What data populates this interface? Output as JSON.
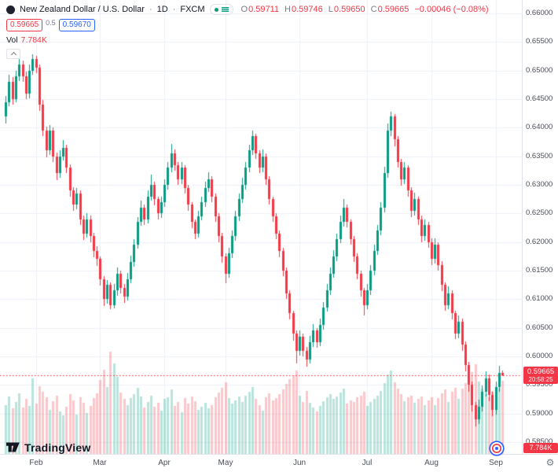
{
  "header": {
    "symbol_title": "New Zealand Dollar / U.S. Dollar",
    "separator": "·",
    "interval": "1D",
    "exchange": "FXCM",
    "ohlc": {
      "o_label": "O",
      "o": "0.59711",
      "h_label": "H",
      "h": "0.59746",
      "l_label": "L",
      "l": "0.59650",
      "c_label": "C",
      "c": "0.59665",
      "change": "−0.00046 (−0.08%)"
    },
    "bid": "0.59665",
    "spread": "0.5",
    "ask": "0.59670",
    "vol_label": "Vol",
    "vol_value": "7.784K"
  },
  "footer": {
    "brand": "TradingView"
  },
  "icons": {
    "gear": "⚙",
    "market_status": "green-dot"
  },
  "colors": {
    "up": "#089981",
    "down": "#f23645",
    "accent_blue": "#2962ff",
    "grid": "#eef0f6",
    "axis_text": "#4a4e59",
    "text_dark": "#131722",
    "text_muted": "#787b86"
  },
  "chart_data": {
    "type": "candlestick_with_volume",
    "title": "New Zealand Dollar / U.S. Dollar",
    "interval": "1D",
    "exchange": "FXCM",
    "legend_position": "top-left",
    "grid": true,
    "y_axis": {
      "min": 0.585,
      "max": 0.66,
      "tick_step": 0.005,
      "ticks": [
        "0.66000",
        "0.65500",
        "0.65000",
        "0.64500",
        "0.64000",
        "0.63500",
        "0.63000",
        "0.62500",
        "0.62000",
        "0.61500",
        "0.61000",
        "0.60500",
        "0.60000",
        "0.59500",
        "0.59000",
        "0.58500"
      ]
    },
    "x_axis": {
      "months": [
        {
          "label": "Feb",
          "i": 9
        },
        {
          "label": "Mar",
          "i": 28
        },
        {
          "label": "Apr",
          "i": 47
        },
        {
          "label": "May",
          "i": 65
        },
        {
          "label": "Jun",
          "i": 87
        },
        {
          "label": "Jul",
          "i": 107
        },
        {
          "label": "Aug",
          "i": 126
        },
        {
          "label": "Sep",
          "i": 145
        }
      ]
    },
    "price_line": {
      "price": 0.59665,
      "label": "0.59665",
      "countdown": "20:58:25"
    },
    "volume_label": "7.784K",
    "volume_unit": "K",
    "candle_fields": [
      "open",
      "high",
      "low",
      "close",
      "volumeK"
    ],
    "candles": [
      [
        0.642,
        0.6455,
        0.6408,
        0.6445,
        5.2
      ],
      [
        0.6445,
        0.6492,
        0.6438,
        0.648,
        6.1
      ],
      [
        0.648,
        0.6488,
        0.644,
        0.645,
        4.8
      ],
      [
        0.645,
        0.65,
        0.6444,
        0.649,
        5.5
      ],
      [
        0.649,
        0.6522,
        0.6482,
        0.651,
        6.4
      ],
      [
        0.651,
        0.6518,
        0.648,
        0.649,
        4.9
      ],
      [
        0.649,
        0.6498,
        0.645,
        0.646,
        5.8
      ],
      [
        0.646,
        0.651,
        0.6452,
        0.65,
        5.1
      ],
      [
        0.65,
        0.6528,
        0.6492,
        0.652,
        8.0
      ],
      [
        0.652,
        0.6526,
        0.6495,
        0.6505,
        5.3
      ],
      [
        0.6505,
        0.651,
        0.643,
        0.644,
        7.2
      ],
      [
        0.644,
        0.6448,
        0.6385,
        0.6395,
        6.6
      ],
      [
        0.6395,
        0.6402,
        0.6348,
        0.636,
        6.0
      ],
      [
        0.636,
        0.6405,
        0.6352,
        0.6395,
        4.7
      ],
      [
        0.6395,
        0.64,
        0.634,
        0.635,
        5.6
      ],
      [
        0.635,
        0.6356,
        0.6308,
        0.632,
        6.2
      ],
      [
        0.632,
        0.636,
        0.6312,
        0.635,
        4.5
      ],
      [
        0.635,
        0.6378,
        0.6342,
        0.6365,
        4.1
      ],
      [
        0.6365,
        0.637,
        0.632,
        0.633,
        5.0
      ],
      [
        0.633,
        0.6336,
        0.628,
        0.629,
        6.3
      ],
      [
        0.629,
        0.6296,
        0.6254,
        0.6265,
        5.7
      ],
      [
        0.6265,
        0.6295,
        0.6257,
        0.6285,
        4.2
      ],
      [
        0.6285,
        0.629,
        0.623,
        0.624,
        6.0
      ],
      [
        0.624,
        0.6246,
        0.6204,
        0.6215,
        5.4
      ],
      [
        0.6215,
        0.625,
        0.6208,
        0.624,
        4.3
      ],
      [
        0.624,
        0.6246,
        0.62,
        0.621,
        5.1
      ],
      [
        0.621,
        0.6216,
        0.6174,
        0.6185,
        5.9
      ],
      [
        0.6185,
        0.6192,
        0.6158,
        0.617,
        6.4
      ],
      [
        0.617,
        0.6175,
        0.6124,
        0.6135,
        7.8
      ],
      [
        0.6135,
        0.614,
        0.6088,
        0.61,
        8.9
      ],
      [
        0.61,
        0.6134,
        0.6092,
        0.6125,
        7.1
      ],
      [
        0.6125,
        0.613,
        0.6082,
        0.609,
        10.8
      ],
      [
        0.609,
        0.6126,
        0.6084,
        0.6115,
        9.6
      ],
      [
        0.6115,
        0.6155,
        0.6106,
        0.6145,
        8.2
      ],
      [
        0.6145,
        0.615,
        0.611,
        0.612,
        6.5
      ],
      [
        0.612,
        0.6126,
        0.6094,
        0.6105,
        5.8
      ],
      [
        0.6105,
        0.6146,
        0.6098,
        0.6135,
        5.2
      ],
      [
        0.6135,
        0.6176,
        0.6128,
        0.6165,
        5.9
      ],
      [
        0.6165,
        0.6205,
        0.6157,
        0.6195,
        6.3
      ],
      [
        0.6195,
        0.6244,
        0.6188,
        0.6235,
        7.0
      ],
      [
        0.6235,
        0.6272,
        0.6228,
        0.626,
        6.1
      ],
      [
        0.626,
        0.6266,
        0.623,
        0.624,
        4.9
      ],
      [
        0.624,
        0.629,
        0.6233,
        0.628,
        5.5
      ],
      [
        0.628,
        0.6318,
        0.6272,
        0.63,
        6.2
      ],
      [
        0.63,
        0.6306,
        0.6264,
        0.6275,
        5.0
      ],
      [
        0.6275,
        0.628,
        0.624,
        0.625,
        5.4
      ],
      [
        0.625,
        0.628,
        0.6242,
        0.627,
        4.6
      ],
      [
        0.627,
        0.631,
        0.6262,
        0.63,
        5.8
      ],
      [
        0.63,
        0.634,
        0.6292,
        0.633,
        6.0
      ],
      [
        0.633,
        0.6372,
        0.6322,
        0.6355,
        6.8
      ],
      [
        0.6355,
        0.6362,
        0.6325,
        0.6335,
        5.1
      ],
      [
        0.6335,
        0.634,
        0.63,
        0.631,
        5.5
      ],
      [
        0.631,
        0.634,
        0.6302,
        0.633,
        4.4
      ],
      [
        0.633,
        0.6335,
        0.6285,
        0.6295,
        5.9
      ],
      [
        0.6295,
        0.63,
        0.6255,
        0.6265,
        5.3
      ],
      [
        0.6265,
        0.627,
        0.6224,
        0.6235,
        6.1
      ],
      [
        0.6235,
        0.624,
        0.6205,
        0.6215,
        5.6
      ],
      [
        0.6215,
        0.6255,
        0.6208,
        0.6245,
        4.7
      ],
      [
        0.6245,
        0.628,
        0.6238,
        0.627,
        5.0
      ],
      [
        0.627,
        0.6306,
        0.6262,
        0.6295,
        5.4
      ],
      [
        0.6295,
        0.6322,
        0.6287,
        0.631,
        4.8
      ],
      [
        0.631,
        0.6315,
        0.627,
        0.628,
        5.2
      ],
      [
        0.628,
        0.6285,
        0.6235,
        0.6245,
        6.0
      ],
      [
        0.6245,
        0.625,
        0.62,
        0.621,
        6.5
      ],
      [
        0.621,
        0.6216,
        0.6164,
        0.6175,
        7.0
      ],
      [
        0.6175,
        0.618,
        0.6128,
        0.6145,
        7.6
      ],
      [
        0.6145,
        0.619,
        0.6138,
        0.618,
        5.9
      ],
      [
        0.618,
        0.622,
        0.6172,
        0.621,
        5.3
      ],
      [
        0.621,
        0.6254,
        0.6202,
        0.6245,
        5.7
      ],
      [
        0.6245,
        0.6285,
        0.6237,
        0.6275,
        6.1
      ],
      [
        0.6275,
        0.6312,
        0.6268,
        0.63,
        5.5
      ],
      [
        0.63,
        0.634,
        0.6292,
        0.633,
        6.2
      ],
      [
        0.633,
        0.637,
        0.6322,
        0.636,
        6.6
      ],
      [
        0.636,
        0.6395,
        0.6352,
        0.6385,
        7.1
      ],
      [
        0.6385,
        0.639,
        0.6345,
        0.6355,
        5.8
      ],
      [
        0.6355,
        0.636,
        0.632,
        0.633,
        5.2
      ],
      [
        0.633,
        0.6362,
        0.6322,
        0.635,
        4.6
      ],
      [
        0.635,
        0.6355,
        0.63,
        0.631,
        6.0
      ],
      [
        0.631,
        0.6315,
        0.6265,
        0.6275,
        6.4
      ],
      [
        0.6275,
        0.628,
        0.6235,
        0.6245,
        5.7
      ],
      [
        0.6245,
        0.625,
        0.6205,
        0.6215,
        5.9
      ],
      [
        0.6215,
        0.622,
        0.6174,
        0.6185,
        6.3
      ],
      [
        0.6185,
        0.619,
        0.614,
        0.615,
        6.8
      ],
      [
        0.615,
        0.6155,
        0.61,
        0.611,
        7.4
      ],
      [
        0.611,
        0.6116,
        0.6064,
        0.6075,
        7.9
      ],
      [
        0.6075,
        0.608,
        0.6028,
        0.604,
        8.3
      ],
      [
        0.604,
        0.6046,
        0.5988,
        0.601,
        8.8
      ],
      [
        0.601,
        0.6046,
        0.6002,
        0.6035,
        6.2
      ],
      [
        0.6035,
        0.604,
        0.6,
        0.601,
        5.5
      ],
      [
        0.601,
        0.6016,
        0.5982,
        0.5995,
        6.7
      ],
      [
        0.5995,
        0.6036,
        0.5988,
        0.6025,
        5.4
      ],
      [
        0.6025,
        0.6056,
        0.6017,
        0.6045,
        4.9
      ],
      [
        0.6045,
        0.605,
        0.6015,
        0.6025,
        4.5
      ],
      [
        0.6025,
        0.6066,
        0.6018,
        0.6055,
        5.1
      ],
      [
        0.6055,
        0.6095,
        0.6047,
        0.6085,
        5.6
      ],
      [
        0.6085,
        0.6126,
        0.6078,
        0.6115,
        6.0
      ],
      [
        0.6115,
        0.6155,
        0.6107,
        0.6145,
        6.3
      ],
      [
        0.6145,
        0.6186,
        0.6138,
        0.6175,
        5.8
      ],
      [
        0.6175,
        0.6215,
        0.6167,
        0.6205,
        6.1
      ],
      [
        0.6205,
        0.6246,
        0.6198,
        0.6235,
        6.5
      ],
      [
        0.6235,
        0.6275,
        0.6227,
        0.626,
        6.9
      ],
      [
        0.626,
        0.6265,
        0.6225,
        0.6235,
        5.3
      ],
      [
        0.6235,
        0.624,
        0.6195,
        0.6205,
        5.7
      ],
      [
        0.6205,
        0.621,
        0.6165,
        0.6175,
        5.5
      ],
      [
        0.6175,
        0.618,
        0.6135,
        0.6145,
        6.0
      ],
      [
        0.6145,
        0.615,
        0.6104,
        0.6115,
        6.2
      ],
      [
        0.6115,
        0.612,
        0.6072,
        0.609,
        6.6
      ],
      [
        0.609,
        0.6126,
        0.6082,
        0.6115,
        5.1
      ],
      [
        0.6115,
        0.616,
        0.6108,
        0.615,
        5.5
      ],
      [
        0.615,
        0.6196,
        0.6142,
        0.6185,
        5.8
      ],
      [
        0.6185,
        0.623,
        0.6177,
        0.622,
        6.2
      ],
      [
        0.622,
        0.627,
        0.6212,
        0.626,
        6.7
      ],
      [
        0.626,
        0.6332,
        0.6252,
        0.632,
        7.5
      ],
      [
        0.632,
        0.6408,
        0.6312,
        0.6395,
        8.4
      ],
      [
        0.6395,
        0.6428,
        0.6386,
        0.642,
        8.8
      ],
      [
        0.642,
        0.6424,
        0.6368,
        0.638,
        7.6
      ],
      [
        0.638,
        0.6386,
        0.633,
        0.634,
        6.9
      ],
      [
        0.634,
        0.6346,
        0.6298,
        0.631,
        6.3
      ],
      [
        0.631,
        0.634,
        0.6302,
        0.633,
        5.6
      ],
      [
        0.633,
        0.6335,
        0.628,
        0.629,
        6.0
      ],
      [
        0.629,
        0.6296,
        0.6244,
        0.6255,
        6.2
      ],
      [
        0.6255,
        0.6286,
        0.6247,
        0.6275,
        5.4
      ],
      [
        0.6275,
        0.628,
        0.623,
        0.624,
        5.8
      ],
      [
        0.624,
        0.6246,
        0.62,
        0.621,
        6.1
      ],
      [
        0.621,
        0.624,
        0.6202,
        0.623,
        5.2
      ],
      [
        0.623,
        0.6236,
        0.619,
        0.62,
        5.7
      ],
      [
        0.62,
        0.6206,
        0.616,
        0.617,
        6.0
      ],
      [
        0.617,
        0.6206,
        0.6162,
        0.6195,
        5.2
      ],
      [
        0.6195,
        0.62,
        0.615,
        0.616,
        5.9
      ],
      [
        0.616,
        0.6166,
        0.6114,
        0.6125,
        6.4
      ],
      [
        0.6125,
        0.613,
        0.608,
        0.609,
        6.8
      ],
      [
        0.609,
        0.6122,
        0.6082,
        0.611,
        5.5
      ],
      [
        0.611,
        0.6116,
        0.6064,
        0.6075,
        6.6
      ],
      [
        0.6075,
        0.608,
        0.603,
        0.604,
        7.0
      ],
      [
        0.604,
        0.6072,
        0.6032,
        0.606,
        5.8
      ],
      [
        0.606,
        0.6066,
        0.601,
        0.602,
        6.9
      ],
      [
        0.602,
        0.6026,
        0.5974,
        0.5985,
        7.5
      ],
      [
        0.5985,
        0.599,
        0.5938,
        0.595,
        8.0
      ],
      [
        0.595,
        0.5956,
        0.5904,
        0.5915,
        8.7
      ],
      [
        0.5915,
        0.592,
        0.5878,
        0.589,
        9.5
      ],
      [
        0.589,
        0.5924,
        0.5882,
        0.5912,
        7.7
      ],
      [
        0.5912,
        0.5949,
        0.5904,
        0.5938,
        6.9
      ],
      [
        0.5938,
        0.5974,
        0.593,
        0.5962,
        6.3
      ],
      [
        0.5962,
        0.5968,
        0.5922,
        0.5932,
        6.0
      ],
      [
        0.5932,
        0.5938,
        0.5895,
        0.5906,
        6.7
      ],
      [
        0.5906,
        0.5956,
        0.5898,
        0.5946,
        6.2
      ],
      [
        0.5946,
        0.5983,
        0.5938,
        0.5971,
        7.0
      ],
      [
        0.59711,
        0.59746,
        0.5965,
        0.59665,
        7.784
      ]
    ]
  }
}
